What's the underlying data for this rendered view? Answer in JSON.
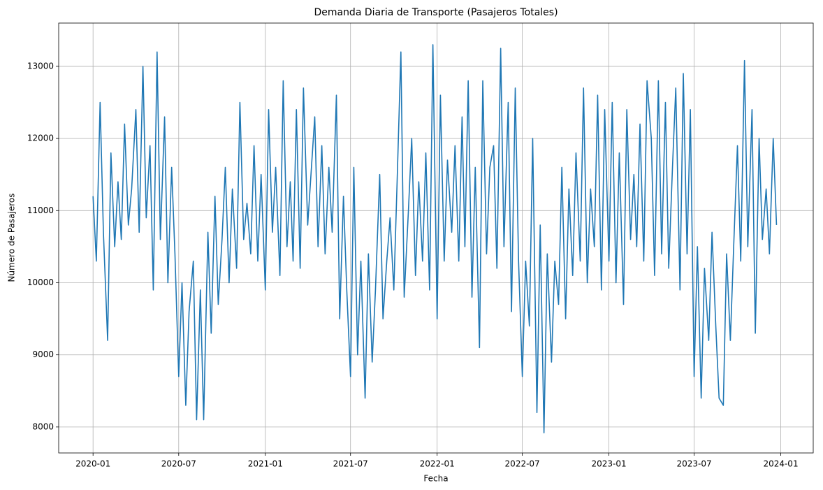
{
  "chart_data": {
    "type": "line",
    "title": "Demanda Diaria de Transporte (Pasajeros Totales)",
    "xlabel": "Fecha",
    "ylabel": "Número de Pasajeros",
    "x": [
      "2020-01-01",
      "2020-01-08",
      "2020-01-16",
      "2020-01-23",
      "2020-02-01",
      "2020-02-08",
      "2020-02-16",
      "2020-02-23",
      "2020-03-01",
      "2020-03-08",
      "2020-03-16",
      "2020-03-23",
      "2020-04-01",
      "2020-04-08",
      "2020-04-16",
      "2020-04-23",
      "2020-05-01",
      "2020-05-08",
      "2020-05-16",
      "2020-05-23",
      "2020-06-01",
      "2020-06-08",
      "2020-06-16",
      "2020-06-23",
      "2020-07-01",
      "2020-07-08",
      "2020-07-16",
      "2020-07-23",
      "2020-08-01",
      "2020-08-08",
      "2020-08-16",
      "2020-08-23",
      "2020-09-01",
      "2020-09-08",
      "2020-09-16",
      "2020-09-23",
      "2020-10-01",
      "2020-10-08",
      "2020-10-16",
      "2020-10-23",
      "2020-11-01",
      "2020-11-08",
      "2020-11-16",
      "2020-11-23",
      "2020-12-01",
      "2020-12-08",
      "2020-12-16",
      "2020-12-23",
      "2021-01-01",
      "2021-01-08",
      "2021-01-16",
      "2021-01-23",
      "2021-02-01",
      "2021-02-08",
      "2021-02-16",
      "2021-02-23",
      "2021-03-01",
      "2021-03-08",
      "2021-03-16",
      "2021-03-23",
      "2021-04-01",
      "2021-04-08",
      "2021-04-16",
      "2021-04-23",
      "2021-05-01",
      "2021-05-08",
      "2021-05-16",
      "2021-05-23",
      "2021-06-01",
      "2021-06-08",
      "2021-06-16",
      "2021-06-23",
      "2021-07-01",
      "2021-07-08",
      "2021-07-16",
      "2021-07-23",
      "2021-08-01",
      "2021-08-08",
      "2021-08-16",
      "2021-08-23",
      "2021-09-01",
      "2021-09-08",
      "2021-09-16",
      "2021-09-23",
      "2021-10-01",
      "2021-10-08",
      "2021-10-16",
      "2021-10-23",
      "2021-11-01",
      "2021-11-08",
      "2021-11-16",
      "2021-11-23",
      "2021-12-01",
      "2021-12-08",
      "2021-12-16",
      "2021-12-23",
      "2022-01-01",
      "2022-01-08",
      "2022-01-16",
      "2022-01-23",
      "2022-02-01",
      "2022-02-08",
      "2022-02-16",
      "2022-02-23",
      "2022-03-01",
      "2022-03-08",
      "2022-03-16",
      "2022-03-23",
      "2022-04-01",
      "2022-04-08",
      "2022-04-16",
      "2022-04-23",
      "2022-05-01",
      "2022-05-08",
      "2022-05-16",
      "2022-05-23",
      "2022-06-01",
      "2022-06-08",
      "2022-06-16",
      "2022-06-23",
      "2022-07-01",
      "2022-07-08",
      "2022-07-16",
      "2022-07-23",
      "2022-08-01",
      "2022-08-08",
      "2022-08-16",
      "2022-08-23",
      "2022-09-01",
      "2022-09-08",
      "2022-09-16",
      "2022-09-23",
      "2022-10-01",
      "2022-10-08",
      "2022-10-16",
      "2022-10-23",
      "2022-11-01",
      "2022-11-08",
      "2022-11-16",
      "2022-11-23",
      "2022-12-01",
      "2022-12-08",
      "2022-12-16",
      "2022-12-23",
      "2023-01-01",
      "2023-01-08",
      "2023-01-16",
      "2023-01-23",
      "2023-02-01",
      "2023-02-08",
      "2023-02-16",
      "2023-02-23",
      "2023-03-01",
      "2023-03-08",
      "2023-03-16",
      "2023-03-23",
      "2023-04-01",
      "2023-04-08",
      "2023-04-16",
      "2023-04-23",
      "2023-05-01",
      "2023-05-08",
      "2023-05-16",
      "2023-05-23",
      "2023-06-01",
      "2023-06-08",
      "2023-06-16",
      "2023-06-23",
      "2023-07-01",
      "2023-07-08",
      "2023-07-16",
      "2023-07-23",
      "2023-08-01",
      "2023-08-08",
      "2023-08-16",
      "2023-08-23",
      "2023-09-01",
      "2023-09-08",
      "2023-09-16",
      "2023-09-23",
      "2023-10-01",
      "2023-10-08",
      "2023-10-16",
      "2023-10-23",
      "2023-11-01",
      "2023-11-08",
      "2023-11-16",
      "2023-11-23",
      "2023-12-01",
      "2023-12-08",
      "2023-12-16",
      "2023-12-23"
    ],
    "series": [
      {
        "color": "#1f77b4",
        "values": [
          11200,
          10300,
          12500,
          10700,
          9200,
          11800,
          10500,
          11400,
          10600,
          12200,
          10800,
          11300,
          12400,
          10700,
          13000,
          10900,
          11900,
          9900,
          13200,
          10600,
          12300,
          10000,
          11600,
          10400,
          8700,
          10000,
          8300,
          9600,
          10300,
          8100,
          9900,
          8100,
          10700,
          9300,
          11200,
          9700,
          10600,
          11600,
          10000,
          11300,
          10200,
          12500,
          10600,
          11100,
          10400,
          11900,
          10300,
          11500,
          9900,
          12400,
          10700,
          11600,
          10100,
          12800,
          10500,
          11400,
          10300,
          12400,
          10200,
          12700,
          10800,
          11500,
          12300,
          10500,
          11900,
          10400,
          11600,
          10700,
          12600,
          9500,
          11200,
          9900,
          8700,
          11600,
          9000,
          10300,
          8400,
          10400,
          8900,
          9900,
          11500,
          9500,
          10300,
          10900,
          9900,
          11400,
          13200,
          9800,
          11000,
          12000,
          10100,
          11400,
          10300,
          11800,
          9900,
          13300,
          9500,
          12600,
          10300,
          11700,
          10700,
          11900,
          10300,
          12300,
          10500,
          12800,
          9800,
          11600,
          9100,
          12800,
          10400,
          11600,
          11900,
          10200,
          13250,
          10500,
          12500,
          9600,
          12700,
          10300,
          8700,
          10300,
          9400,
          12000,
          8200,
          10800,
          7920,
          10400,
          8900,
          10300,
          9700,
          11600,
          9500,
          11300,
          10100,
          11800,
          10300,
          12700,
          10000,
          11300,
          10500,
          12600,
          9900,
          12400,
          10300,
          12500,
          10000,
          11800,
          9700,
          12400,
          10600,
          11500,
          10500,
          12200,
          10300,
          12800,
          12000,
          10100,
          12800,
          10400,
          12500,
          10200,
          11600,
          12700,
          9900,
          12900,
          10400,
          12400,
          8700,
          10500,
          8400,
          10200,
          9200,
          10700,
          9400,
          8400,
          8300,
          10400,
          9200,
          10500,
          11900,
          10300,
          13080,
          10500,
          12400,
          9300,
          12000,
          10600,
          11300,
          10400,
          12000,
          10800
        ]
      }
    ],
    "xlim": [
      "2019-10-20",
      "2024-03-10"
    ],
    "xticks": [
      {
        "value": "2020-01-01",
        "label": "2020-01"
      },
      {
        "value": "2020-07-01",
        "label": "2020-07"
      },
      {
        "value": "2021-01-01",
        "label": "2021-01"
      },
      {
        "value": "2021-07-01",
        "label": "2021-07"
      },
      {
        "value": "2022-01-01",
        "label": "2022-01"
      },
      {
        "value": "2022-07-01",
        "label": "2022-07"
      },
      {
        "value": "2023-01-01",
        "label": "2023-01"
      },
      {
        "value": "2023-07-01",
        "label": "2023-07"
      },
      {
        "value": "2024-01-01",
        "label": "2024-01"
      }
    ],
    "ylim": [
      7640,
      13600
    ],
    "yticks": [
      8000,
      9000,
      10000,
      11000,
      12000,
      13000
    ],
    "grid": true
  }
}
